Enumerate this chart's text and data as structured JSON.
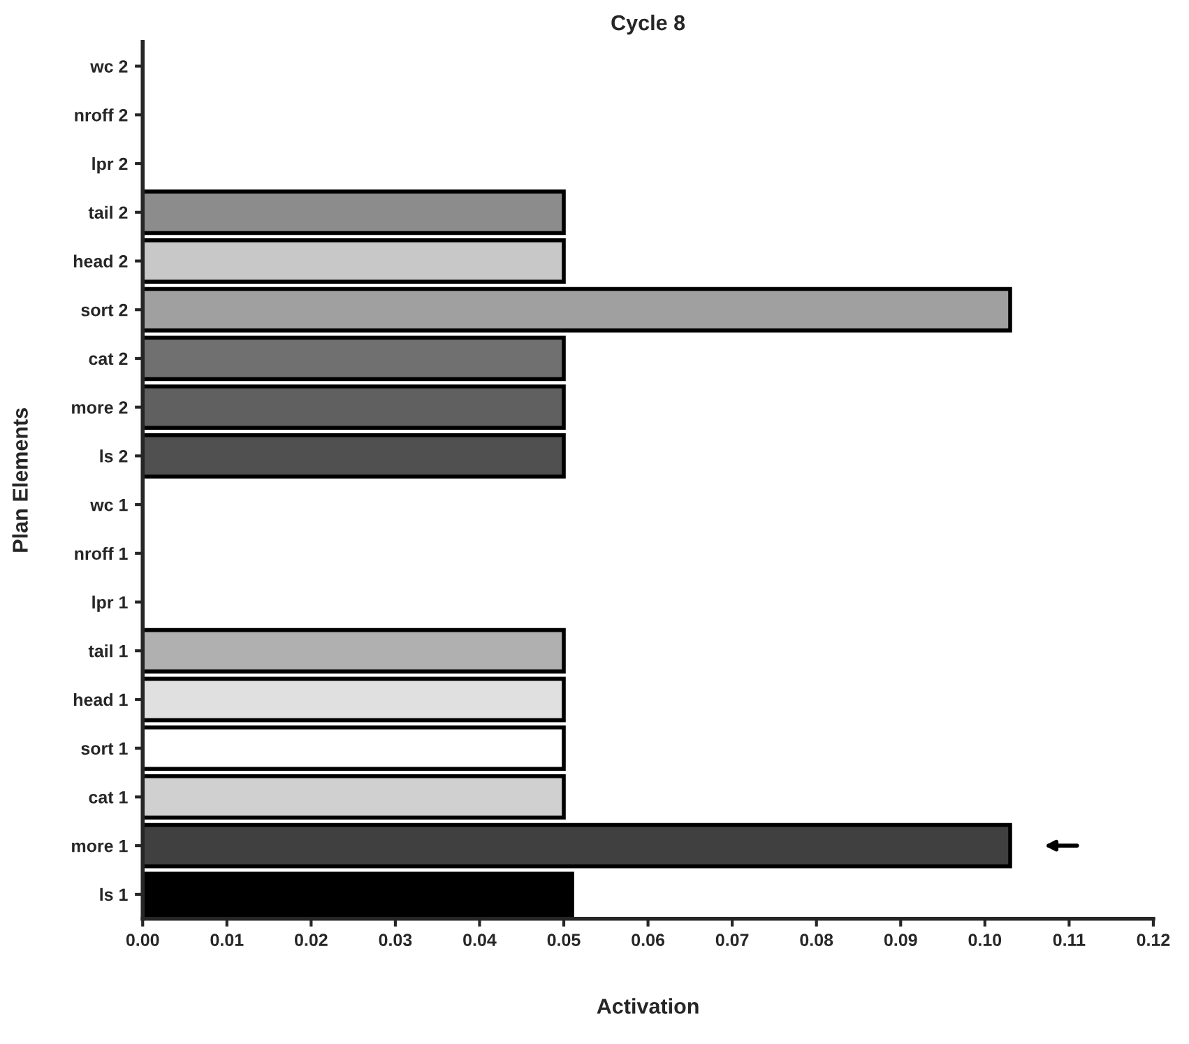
{
  "chart_data": {
    "type": "bar",
    "orientation": "horizontal",
    "title": "Cycle 8",
    "xlabel": "Activation",
    "ylabel": "Plan Elements",
    "categories": [
      "wc 2",
      "nroff 2",
      "lpr 2",
      "tail 2",
      "head 2",
      "sort 2",
      "cat 2",
      "more 2",
      "ls 2",
      "wc 1",
      "nroff 1",
      "lpr 1",
      "tail 1",
      "head 1",
      "sort 1",
      "cat 1",
      "more 1",
      "ls 1"
    ],
    "values": [
      0,
      0,
      0,
      0.05,
      0.05,
      0.103,
      0.05,
      0.05,
      0.05,
      0,
      0,
      0,
      0.05,
      0.05,
      0.05,
      0.05,
      0.103,
      0.051
    ],
    "colors": [
      "#ffffff",
      "#ffffff",
      "#ffffff",
      "#8c8c8c",
      "#c8c8c8",
      "#a0a0a0",
      "#707070",
      "#606060",
      "#505050",
      "#ffffff",
      "#ffffff",
      "#ffffff",
      "#b0b0b0",
      "#e0e0e0",
      "#ffffff",
      "#d0d0d0",
      "#404040",
      "#000000"
    ],
    "xlim": [
      0,
      0.12
    ],
    "xticks": [
      {
        "value": 0,
        "label": "0.00"
      },
      {
        "value": 0.01,
        "label": "0.01"
      },
      {
        "value": 0.02,
        "label": "0.02"
      },
      {
        "value": 0.03,
        "label": "0.03"
      },
      {
        "value": 0.04,
        "label": "0.04"
      },
      {
        "value": 0.05,
        "label": "0.05"
      },
      {
        "value": 0.06,
        "label": "0.06"
      },
      {
        "value": 0.07,
        "label": "0.07"
      },
      {
        "value": 0.08,
        "label": "0.08"
      },
      {
        "value": 0.09,
        "label": "0.09"
      },
      {
        "value": 0.1,
        "label": "0.10"
      },
      {
        "value": 0.11,
        "label": "0.11"
      },
      {
        "value": 0.12,
        "label": "0.12"
      }
    ],
    "grid": false,
    "legend": false
  }
}
